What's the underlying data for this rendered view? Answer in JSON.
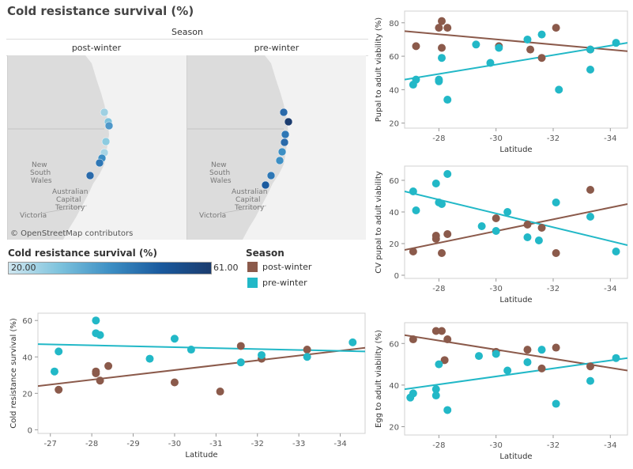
{
  "dashboard": {
    "title": "Cold resistance survival (%)"
  },
  "map": {
    "season_header": "Season",
    "panel_titles": [
      "post-winter",
      "pre-winter"
    ],
    "place_labels": [
      "New",
      "South",
      "Wales",
      "Australian",
      "Capital",
      "Territory",
      "Victoria"
    ],
    "credit": "© OpenStreetMap contributors"
  },
  "legend_color": {
    "title": "Cold resistance survival (%)",
    "min_label": "20.00",
    "max_label": "61.00",
    "colors": [
      "#cfe6ef",
      "#7ec3dd",
      "#3d8fc4",
      "#1a5a9e",
      "#1b3c6e"
    ]
  },
  "legend_season": {
    "title": "Season",
    "items": [
      "post-winter",
      "pre-winter"
    ],
    "colors": [
      "#8b5a4b",
      "#22b8c7"
    ]
  },
  "chart_data": [
    {
      "id": "pupal",
      "type": "scatter",
      "xlabel": "Latitude",
      "ylabel": "Pupal to adult viability (%)",
      "xlim": [
        -26.8,
        -34.6
      ],
      "ylim": [
        17,
        87
      ],
      "xticks": [
        -28,
        -30,
        -32,
        -34
      ],
      "xtick_labels": [
        "-28",
        "-30",
        "-32",
        "-34"
      ],
      "yticks": [
        20,
        40,
        60,
        80
      ],
      "ytick_labels": [
        "20",
        "40",
        "60",
        "80"
      ],
      "series": [
        {
          "name": "post-winter",
          "color": "#8b5a4b",
          "x": [
            -28.1,
            -28.0,
            -28.1,
            -28.3,
            -27.2,
            -30.1,
            -31.2,
            -31.6,
            -32.1,
            -33.3
          ],
          "y": [
            81,
            77,
            65,
            77,
            66,
            66,
            64,
            59,
            77,
            64
          ],
          "trend": [
            75,
            63
          ]
        },
        {
          "name": "pre-winter",
          "color": "#22b8c7",
          "x": [
            -27.1,
            -27.2,
            -28.0,
            -28.0,
            -28.1,
            -28.3,
            -29.3,
            -29.8,
            -30.1,
            -31.1,
            -31.6,
            -32.2,
            -33.3,
            -34.2,
            -33.3
          ],
          "y": [
            43,
            46,
            46,
            45,
            59,
            34,
            67,
            56,
            65,
            70,
            73,
            40,
            64,
            68,
            52
          ],
          "trend": [
            46,
            68
          ]
        }
      ]
    },
    {
      "id": "cv",
      "type": "scatter",
      "xlabel": "Latitude",
      "ylabel": "CV pupal to adult viability",
      "xlim": [
        -26.8,
        -34.6
      ],
      "ylim": [
        -2,
        69
      ],
      "xticks": [
        -28,
        -30,
        -32,
        -34
      ],
      "xtick_labels": [
        "-28",
        "-30",
        "-32",
        "-34"
      ],
      "yticks": [
        0,
        20,
        40,
        60
      ],
      "ytick_labels": [
        "0",
        "20",
        "40",
        "60"
      ],
      "series": [
        {
          "name": "post-winter",
          "color": "#8b5a4b",
          "x": [
            -27.1,
            -27.9,
            -27.9,
            -28.1,
            -28.3,
            -30.0,
            -31.1,
            -31.6,
            -32.1,
            -33.3
          ],
          "y": [
            15,
            23,
            25,
            14,
            26,
            36,
            32,
            30,
            14,
            54
          ],
          "trend": [
            16,
            45
          ]
        },
        {
          "name": "pre-winter",
          "color": "#22b8c7",
          "x": [
            -27.1,
            -27.2,
            -27.9,
            -28.0,
            -28.1,
            -28.3,
            -29.5,
            -30.0,
            -30.4,
            -31.1,
            -31.5,
            -32.1,
            -33.3,
            -34.2
          ],
          "y": [
            53,
            41,
            58,
            46,
            45,
            64,
            31,
            28,
            40,
            24,
            22,
            46,
            37,
            15
          ],
          "trend": [
            53,
            19
          ]
        }
      ]
    },
    {
      "id": "cold",
      "type": "scatter",
      "xlabel": "Latitude",
      "ylabel": "Cold resistance survival (%)",
      "xlim": [
        -26.7,
        -34.6
      ],
      "ylim": [
        -2,
        64
      ],
      "xticks": [
        -27,
        -28,
        -29,
        -30,
        -31,
        -32,
        -33,
        -34
      ],
      "xtick_labels": [
        "-27",
        "-28",
        "-29",
        "-30",
        "-31",
        "-32",
        "-33",
        "-34"
      ],
      "yticks": [
        0,
        20,
        40,
        60
      ],
      "ytick_labels": [
        "0",
        "20",
        "40",
        "60"
      ],
      "series": [
        {
          "name": "post-winter",
          "color": "#8b5a4b",
          "x": [
            -27.2,
            -28.1,
            -28.1,
            -28.2,
            -28.4,
            -30.0,
            -31.1,
            -31.6,
            -32.1,
            -33.2
          ],
          "y": [
            22,
            32,
            31,
            27,
            35,
            26,
            21,
            46,
            39,
            44
          ],
          "trend": [
            24,
            45
          ]
        },
        {
          "name": "pre-winter",
          "color": "#22b8c7",
          "x": [
            -27.1,
            -27.2,
            -28.1,
            -28.1,
            -28.2,
            -29.4,
            -30.0,
            -30.4,
            -31.6,
            -32.1,
            -33.2,
            -34.3
          ],
          "y": [
            32,
            43,
            60,
            53,
            52,
            39,
            50,
            44,
            37,
            41,
            40,
            48
          ],
          "trend": [
            47,
            43
          ]
        }
      ]
    },
    {
      "id": "egg",
      "type": "scatter",
      "xlabel": "Latitude",
      "ylabel": "Egg to adult viability (%)",
      "xlim": [
        -26.8,
        -34.6
      ],
      "ylim": [
        16,
        70
      ],
      "xticks": [
        -28,
        -30,
        -32,
        -34
      ],
      "xtick_labels": [
        "-28",
        "-30",
        "-32",
        "-34"
      ],
      "yticks": [
        20,
        40,
        60
      ],
      "ytick_labels": [
        "20",
        "40",
        "60"
      ],
      "series": [
        {
          "name": "post-winter",
          "color": "#8b5a4b",
          "x": [
            -27.1,
            -27.9,
            -28.1,
            -28.2,
            -28.3,
            -30.0,
            -31.1,
            -31.6,
            -32.1,
            -33.3
          ],
          "y": [
            62,
            66,
            66,
            52,
            62,
            56,
            57,
            48,
            58,
            49
          ],
          "trend": [
            64,
            47
          ]
        },
        {
          "name": "pre-winter",
          "color": "#22b8c7",
          "x": [
            -27.0,
            -27.1,
            -27.9,
            -27.9,
            -28.0,
            -28.3,
            -29.4,
            -30.0,
            -30.4,
            -31.1,
            -31.6,
            -32.1,
            -33.3,
            -34.2
          ],
          "y": [
            34,
            36,
            38,
            35,
            50,
            28,
            54,
            55,
            47,
            51,
            57,
            31,
            42,
            53
          ],
          "trend": [
            38,
            53
          ]
        }
      ]
    }
  ]
}
